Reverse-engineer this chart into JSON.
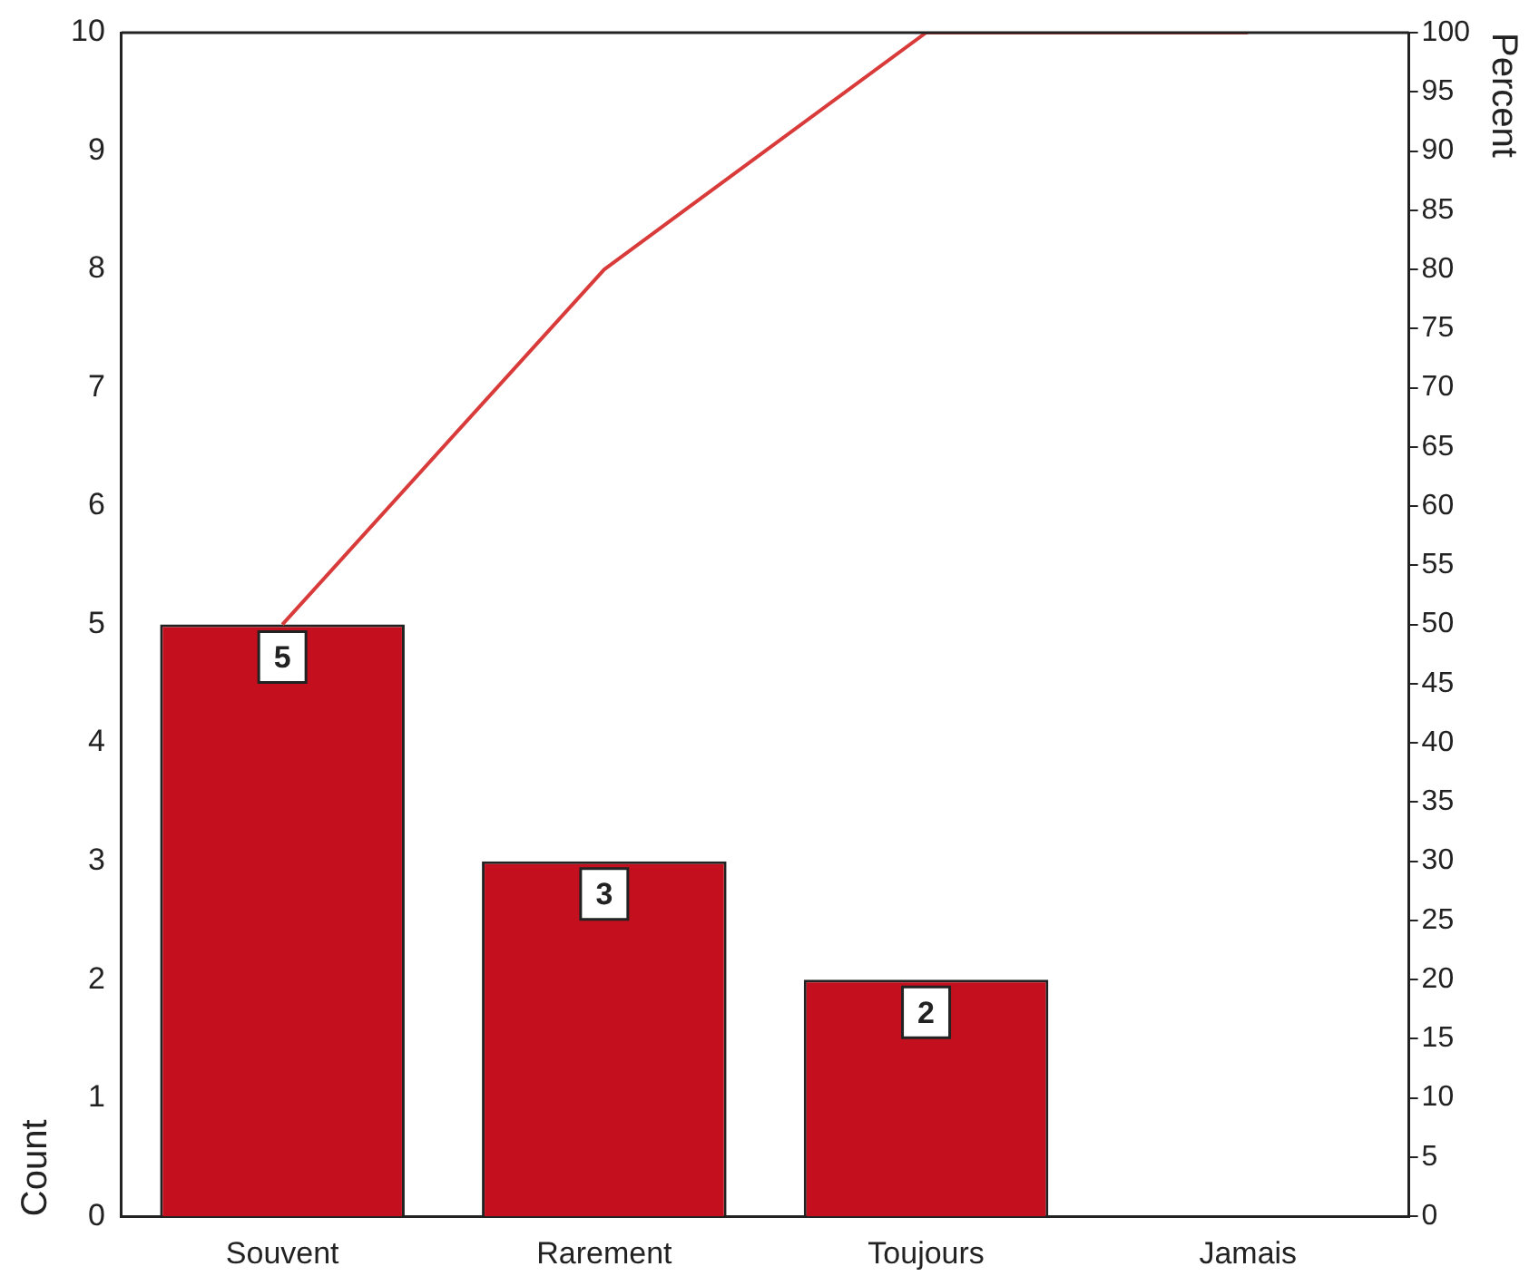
{
  "chart_data": {
    "type": "bar",
    "categories": [
      "Souvent",
      "Rarement",
      "Toujours",
      "Jamais"
    ],
    "series": [
      {
        "color": "#c4101e",
        "values": [
          5,
          3,
          2,
          0
        ],
        "value_labels": [
          "5",
          "3",
          "2",
          null
        ]
      },
      {
        "type": "line",
        "axis": "y2",
        "color": "#d93a3a",
        "values": [
          50,
          80,
          100,
          100
        ],
        "marker": "none"
      }
    ],
    "ylabel": "Count",
    "y2label": "Percent",
    "ylim": [
      0,
      10
    ],
    "yticks": [
      0,
      1,
      2,
      3,
      4,
      5,
      6,
      7,
      8,
      9,
      10
    ],
    "y2lim": [
      0,
      100
    ],
    "y2ticks": [
      0,
      5,
      10,
      15,
      20,
      25,
      30,
      35,
      40,
      45,
      50,
      55,
      60,
      65,
      70,
      75,
      80,
      85,
      90,
      95,
      100
    ],
    "grid": false,
    "legend": false
  }
}
